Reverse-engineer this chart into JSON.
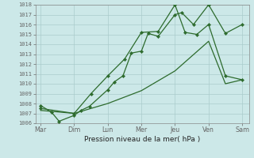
{
  "xlabel": "Pression niveau de la mer( hPa )",
  "bg_color": "#cce8e8",
  "grid_color": "#aacccc",
  "line_color": "#2d6b2d",
  "xlabels": [
    "Mar",
    "Dim",
    "Lun",
    "Mer",
    "Jeu",
    "Ven",
    "Sam"
  ],
  "x_tick_pos": [
    0,
    1,
    2,
    3,
    4,
    5,
    6
  ],
  "ylim": [
    1006,
    1018
  ],
  "yticks": [
    1006,
    1007,
    1008,
    1009,
    1010,
    1011,
    1012,
    1013,
    1014,
    1015,
    1016,
    1017,
    1018
  ],
  "line1_x": [
    0.0,
    0.33,
    0.55,
    1.0,
    1.2,
    1.45,
    2.0,
    2.2,
    2.45,
    2.7,
    3.0,
    3.2,
    3.5,
    4.0,
    4.2,
    4.55,
    5.0,
    5.5,
    6.0
  ],
  "line1_y": [
    1007.8,
    1007.1,
    1006.2,
    1006.8,
    1007.3,
    1007.7,
    1009.4,
    1010.2,
    1010.8,
    1013.1,
    1013.3,
    1015.1,
    1014.8,
    1017.0,
    1017.2,
    1016.0,
    1018.0,
    1015.1,
    1016.0
  ],
  "line2_x": [
    0.0,
    1.0,
    1.5,
    2.0,
    2.5,
    3.0,
    3.5,
    4.0,
    4.3,
    4.65,
    5.0,
    5.5,
    6.0
  ],
  "line2_y": [
    1007.5,
    1007.0,
    1009.0,
    1010.8,
    1012.5,
    1015.2,
    1015.3,
    1018.0,
    1015.2,
    1015.0,
    1016.0,
    1010.8,
    1010.4
  ],
  "line3_x": [
    0.0,
    1.0,
    2.0,
    3.0,
    4.0,
    5.0,
    5.5,
    6.0
  ],
  "line3_y": [
    1007.3,
    1007.0,
    1008.0,
    1009.3,
    1011.3,
    1014.3,
    1010.0,
    1010.4
  ],
  "marker_size": 2.2,
  "linewidth": 0.9
}
